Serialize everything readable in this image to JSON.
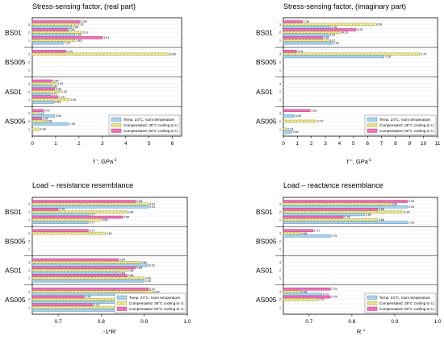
{
  "colors": {
    "temp": "#a9d2ec",
    "comp35": "#f0f0a0",
    "comp50": "#e01c8a",
    "grid": "#e8e8e8"
  },
  "legend": [
    "Temp. 24°C, room temperature",
    "Compensated: 35°C cooling to r.t.",
    "Compensated: 50°C cooling to r.t."
  ],
  "chart_data": [
    {
      "type": "bar",
      "orientation": "horizontal",
      "title": "Stress-sensing factor, (real part)",
      "xlabel": "f ', GPa",
      "xlabel_sup": "-1",
      "xlim": [
        0,
        6.4
      ],
      "xticks": [
        0,
        1,
        2,
        3,
        4,
        5,
        6
      ],
      "xtick_labels": [
        "0",
        "1",
        "2",
        "3",
        "4",
        "5",
        "6"
      ],
      "groups": [
        "BS01",
        "BS005",
        "AS01",
        "AS005"
      ],
      "series": [
        {
          "values": [
            [
              1.68,
              1.82,
              1.33
            ],
            [
              null,
              null,
              null
            ],
            [
              0.8,
              0.77,
              0.93
            ],
            [
              0.96,
              1.55,
              null
            ]
          ]
        },
        {
          "values": [
            [
              1.92,
              2.12,
              1.83
            ],
            [
              5.86,
              null,
              null
            ],
            [
              1.03,
              1.2,
              1.59
            ],
            [
              0.22,
              0.56,
              0.3
            ]
          ]
        },
        {
          "values": [
            [
              2.05,
              1.53,
              3.01
            ],
            [
              1.44,
              null,
              null
            ],
            [
              0.84,
              0.96,
              1.1
            ],
            [
              0.47,
              0.4,
              null
            ]
          ]
        }
      ]
    },
    {
      "type": "bar",
      "orientation": "horizontal",
      "title": "Stress-sensing factor, (imaginary part)",
      "xlabel": "f '', GPa",
      "xlabel_sup": "-1",
      "xlim": [
        0,
        11
      ],
      "xticks": [
        0,
        1,
        2,
        3,
        4,
        5,
        6,
        7,
        8,
        9,
        10,
        11
      ],
      "xtick_labels": [
        "0",
        "1",
        "2",
        "3",
        "4",
        "5",
        "6",
        "7",
        "8",
        "9",
        "10",
        "11"
      ],
      "groups": [
        "BS01",
        "BS005",
        "AS01",
        "AS005"
      ],
      "series": [
        {
          "values": [
            [
              3.36,
              3.23,
              3.49
            ],
            [
              7.18,
              null,
              null
            ],
            [
              null,
              null,
              null
            ],
            [
              0.8,
              null,
              0.6
            ]
          ]
        },
        {
          "values": [
            [
              6.56,
              4.13,
              3.22
            ],
            [
              9.73,
              null,
              null
            ],
            [
              null,
              null,
              null
            ],
            [
              null,
              2.37,
              0.24
            ]
          ]
        },
        {
          "values": [
            [
              1.36,
              5.2,
              2.8
            ],
            [
              0.94,
              null,
              null
            ],
            [
              null,
              null,
              null
            ],
            [
              1.91,
              null,
              null
            ]
          ]
        }
      ]
    },
    {
      "type": "bar",
      "orientation": "horizontal",
      "title": "Load – resistance resemblance",
      "xlabel": "-1*R'",
      "xlim": [
        0.64,
        1.0
      ],
      "xticks": [
        0.7,
        0.8,
        0.9,
        1.0
      ],
      "xtick_labels": [
        "0.7",
        "0.8",
        "0.9",
        "1.0"
      ],
      "groups": [
        "BS01",
        "BS005",
        "AS01",
        "AS005"
      ],
      "series": [
        {
          "values": [
            [
              0.91,
              0.77,
              0.77
            ],
            [
              null,
              null,
              null
            ],
            [
              0.91,
              0.84,
              0.9
            ],
            [
              0.9,
              0.87,
              0.92
            ]
          ]
        },
        {
          "values": [
            [
              0.91,
              0.86,
              0.8
            ],
            [
              0.81,
              null,
              null
            ],
            [
              0.89,
              0.86,
              0.9
            ],
            [
              0.92,
              0.84,
              0.92
            ]
          ]
        },
        {
          "values": [
            [
              0.88,
              0.7,
              0.85
            ],
            [
              0.77,
              null,
              null
            ],
            [
              0.84,
              0.88,
              0.86
            ],
            [
              0.91,
              0.76,
              0.78
            ]
          ]
        }
      ]
    },
    {
      "type": "bar",
      "orientation": "horizontal",
      "title": "Load – reactance resemblance",
      "xlabel": "R ''",
      "xlim": [
        0.64,
        1.0
      ],
      "xticks": [
        0.7,
        0.8,
        0.9,
        1.0
      ],
      "xtick_labels": [
        "0.7",
        "0.8",
        "0.9",
        "1.0"
      ],
      "groups": [
        "BS01",
        "BS005",
        "AS01",
        "AS005"
      ],
      "series": [
        {
          "values": [
            [
              0.93,
              0.83,
              0.93
            ],
            [
              0.75,
              null,
              null
            ],
            [
              null,
              null,
              null
            ],
            [
              0.73,
              null,
              null
            ]
          ]
        },
        {
          "values": [
            [
              0.89,
              0.92,
              0.86
            ],
            [
              0.68,
              null,
              null
            ],
            [
              null,
              null,
              null
            ],
            [
              0.68,
              0.72,
              null
            ]
          ]
        },
        {
          "values": [
            [
              0.93,
              0.86,
              0.78
            ],
            [
              0.71,
              null,
              null
            ],
            [
              null,
              null,
              null
            ],
            [
              0.75,
              0.75,
              null
            ]
          ]
        }
      ]
    }
  ]
}
